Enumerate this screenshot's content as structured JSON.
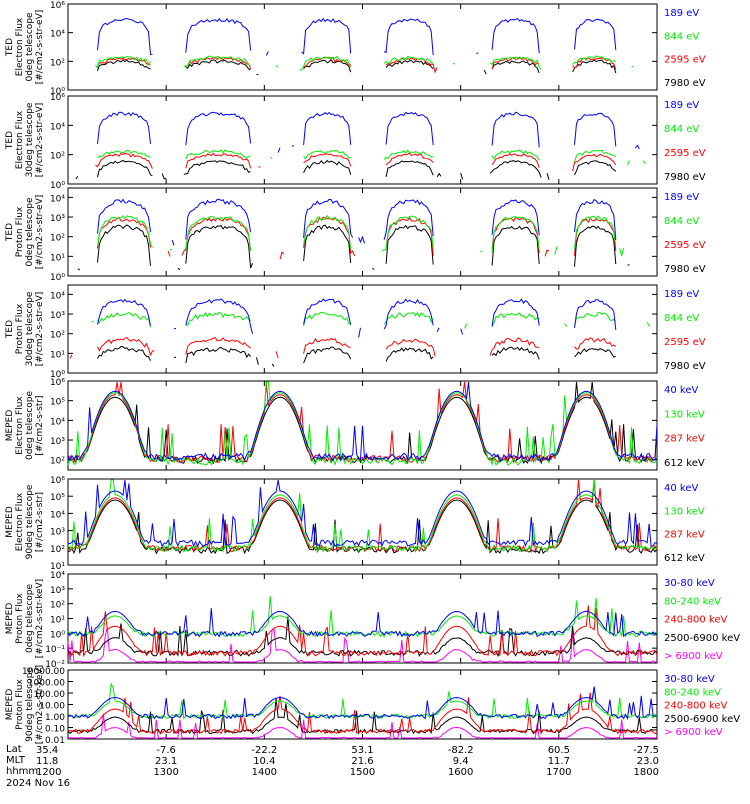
{
  "colors": {
    "blue": "#0000ff",
    "red": "#ff0000",
    "green": "#00ee00",
    "black": "#000000",
    "magenta": "#ff00ff"
  },
  "chart_data": [
    {
      "type": "line",
      "title": "",
      "ylabel": "TED\nElectron Flux\n0deg telescope\n[#/cm2-s-str-eV]",
      "ylog": true,
      "ylim": [
        1,
        1000000
      ],
      "yticks": [
        {
          "v": 1,
          "label": "10⁰"
        },
        {
          "v": 100,
          "label": "10²"
        },
        {
          "v": 10000,
          "label": "10⁴"
        },
        {
          "v": 1000000,
          "label": "10⁶"
        }
      ],
      "series": [
        {
          "name": "7980 eV",
          "color": "black",
          "level": 30,
          "peak": 120
        },
        {
          "name": "2595 eV",
          "color": "red",
          "level": 50,
          "peak": 180
        },
        {
          "name": "844 eV",
          "color": "green",
          "level": 70,
          "peak": 220
        },
        {
          "name": "189 eV",
          "color": "blue",
          "level": 500,
          "peak": 100000
        }
      ]
    },
    {
      "type": "line",
      "title": "",
      "ylabel": "TED\nElectron Flux\n30deg telescope\n[#/cm2-s-str-eV]",
      "ylog": true,
      "ylim": [
        1,
        1000000
      ],
      "yticks": [
        {
          "v": 1,
          "label": "10⁰"
        },
        {
          "v": 100,
          "label": "10²"
        },
        {
          "v": 10000,
          "label": "10⁴"
        },
        {
          "v": 1000000,
          "label": "10⁶"
        }
      ],
      "series": [
        {
          "name": "7980 eV",
          "color": "black",
          "level": 5,
          "peak": 40
        },
        {
          "name": "2595 eV",
          "color": "red",
          "level": 20,
          "peak": 120
        },
        {
          "name": "844 eV",
          "color": "green",
          "level": 60,
          "peak": 200
        },
        {
          "name": "189 eV",
          "color": "blue",
          "level": 400,
          "peak": 80000
        }
      ]
    },
    {
      "type": "line",
      "title": "",
      "ylabel": "TED\nProton Flux\n0deg telescope\n[#/cm2-s-str-eV]",
      "ylog": true,
      "ylim": [
        1,
        30000
      ],
      "yticks": [
        {
          "v": 1,
          "label": "10⁰"
        },
        {
          "v": 10,
          "label": "10¹"
        },
        {
          "v": 100,
          "label": "10²"
        },
        {
          "v": 1000,
          "label": "10³"
        },
        {
          "v": 10000,
          "label": "10⁴"
        }
      ],
      "series": [
        {
          "name": "7980 eV",
          "color": "black",
          "level": 5,
          "peak": 400
        },
        {
          "name": "2595 eV",
          "color": "red",
          "level": 20,
          "peak": 1000
        },
        {
          "name": "844 eV",
          "color": "green",
          "level": 30,
          "peak": 1200
        },
        {
          "name": "189 eV",
          "color": "blue",
          "level": 120,
          "peak": 8000
        }
      ]
    },
    {
      "type": "line",
      "title": "",
      "ylabel": "TED\nProton Flux\n30deg telescope\n[#/cm2-s-str-eV]",
      "ylog": true,
      "ylim": [
        1,
        30000
      ],
      "yticks": [
        {
          "v": 1,
          "label": "10⁰"
        },
        {
          "v": 10,
          "label": "10¹"
        },
        {
          "v": 100,
          "label": "10²"
        },
        {
          "v": 1000,
          "label": "10³"
        },
        {
          "v": 10000,
          "label": "10⁴"
        }
      ],
      "series": [
        {
          "name": "7980 eV",
          "color": "black",
          "level": 6,
          "peak": 20
        },
        {
          "name": "2595 eV",
          "color": "red",
          "level": 15,
          "peak": 60
        },
        {
          "name": "844 eV",
          "color": "green",
          "level": 400,
          "peak": 1200
        },
        {
          "name": "189 eV",
          "color": "blue",
          "level": 200,
          "peak": 6000
        }
      ]
    },
    {
      "type": "line",
      "title": "",
      "ylabel": "MEPED\nElectron Flux\n0deg telescope\n[#/cm2-s-str]",
      "ylog": true,
      "ylim": [
        30,
        1000000
      ],
      "yticks": [
        {
          "v": 100,
          "label": "10²"
        },
        {
          "v": 1000,
          "label": "10³"
        },
        {
          "v": 10000,
          "label": "10⁴"
        },
        {
          "v": 100000,
          "label": "10⁵"
        },
        {
          "v": 1000000,
          "label": "10⁶"
        }
      ],
      "series": [
        {
          "name": "612 keV",
          "color": "black",
          "level": 110,
          "peak": 150000
        },
        {
          "name": "287 keV",
          "color": "red",
          "level": 120,
          "peak": 200000
        },
        {
          "name": "130 keV",
          "color": "green",
          "level": 90,
          "peak": 250000
        },
        {
          "name": "40 keV",
          "color": "blue",
          "level": 150,
          "peak": 300000
        }
      ]
    },
    {
      "type": "line",
      "title": "",
      "ylabel": "MEPED\nElectron Flux\n90deg telescope\n[#/cm2-s-str]",
      "ylog": true,
      "ylim": [
        10,
        1000000
      ],
      "yticks": [
        {
          "v": 10,
          "label": "10¹"
        },
        {
          "v": 100,
          "label": "10²"
        },
        {
          "v": 1000,
          "label": "10³"
        },
        {
          "v": 10000,
          "label": "10⁴"
        },
        {
          "v": 100000,
          "label": "10⁵"
        },
        {
          "v": 1000000,
          "label": "10⁶"
        }
      ],
      "series": [
        {
          "name": "612 keV",
          "color": "black",
          "level": 80,
          "peak": 60000
        },
        {
          "name": "287 keV",
          "color": "red",
          "level": 100,
          "peak": 80000
        },
        {
          "name": "130 keV",
          "color": "green",
          "level": 100,
          "peak": 120000
        },
        {
          "name": "40 keV",
          "color": "blue",
          "level": 200,
          "peak": 200000
        }
      ]
    },
    {
      "type": "line",
      "title": "",
      "ylabel": "MEPED\nProton Flux\n0deg telescope\n[#/cm2-s-str-keV]",
      "ylog": true,
      "ylim": [
        0.01,
        10000
      ],
      "yticks": [
        {
          "v": 0.01,
          "label": "10⁻²"
        },
        {
          "v": 0.1,
          "label": "10⁻¹"
        },
        {
          "v": 1,
          "label": "10⁰"
        },
        {
          "v": 10,
          "label": "10¹"
        },
        {
          "v": 100,
          "label": "10²"
        },
        {
          "v": 1000,
          "label": "10³"
        },
        {
          "v": 10000,
          "label": "10⁴"
        }
      ],
      "series": [
        {
          "name": "> 6900 keV",
          "color": "magenta",
          "level": 0.01,
          "peak": 0.08
        },
        {
          "name": "2500-6900 keV",
          "color": "black",
          "level": 0.05,
          "peak": 0.5
        },
        {
          "name": "240-800 keV",
          "color": "red",
          "level": 0.05,
          "peak": 3
        },
        {
          "name": "80-240 keV",
          "color": "green",
          "level": 1,
          "peak": 15
        },
        {
          "name": "30-80 keV",
          "color": "blue",
          "level": 1,
          "peak": 30
        }
      ]
    },
    {
      "type": "line",
      "title": "",
      "ylabel": "MEPED\nProton Flux\n90deg telescope\n[#/cm2-s-str-keV]",
      "ylog": true,
      "ylim": [
        0.01,
        10000
      ],
      "yticks": [
        {
          "v": 0.01,
          "label": "0.01"
        },
        {
          "v": 0.1,
          "label": "0.10"
        },
        {
          "v": 1,
          "label": "1.00"
        },
        {
          "v": 10,
          "label": "10.00"
        },
        {
          "v": 100,
          "label": "100.00"
        },
        {
          "v": 1000,
          "label": "1000.00"
        },
        {
          "v": 10000,
          "label": "10000.00"
        }
      ],
      "series": [
        {
          "name": "> 6900 keV",
          "color": "magenta",
          "level": 0.01,
          "peak": 0.1
        },
        {
          "name": "2500-6900 keV",
          "color": "black",
          "level": 0.05,
          "peak": 0.8
        },
        {
          "name": "240-800 keV",
          "color": "red",
          "level": 0.05,
          "peak": 4
        },
        {
          "name": "80-240 keV",
          "color": "green",
          "level": 1,
          "peak": 20
        },
        {
          "name": "30-80 keV",
          "color": "blue",
          "level": 1,
          "peak": 40
        }
      ]
    }
  ],
  "x_axis": {
    "row_labels": [
      "Lat",
      "MLT",
      "hhmm",
      "2024 Nov 16"
    ],
    "ticks": [
      {
        "lat": "35.4",
        "mlt": "11.8",
        "hhmm": "1200"
      },
      {
        "lat": "-7.6",
        "mlt": "23.1",
        "hhmm": "1300"
      },
      {
        "lat": "-22.2",
        "mlt": "10.4",
        "hhmm": "1400"
      },
      {
        "lat": "53.1",
        "mlt": "21.6",
        "hhmm": "1500"
      },
      {
        "lat": "-82.2",
        "mlt": "9.4",
        "hhmm": "1600"
      },
      {
        "lat": "60.5",
        "mlt": "11.7",
        "hhmm": "1700"
      },
      {
        "lat": "-27.5",
        "mlt": "23.0",
        "hhmm": "1800"
      }
    ],
    "range_hhmm": [
      "1200",
      "1800"
    ]
  }
}
